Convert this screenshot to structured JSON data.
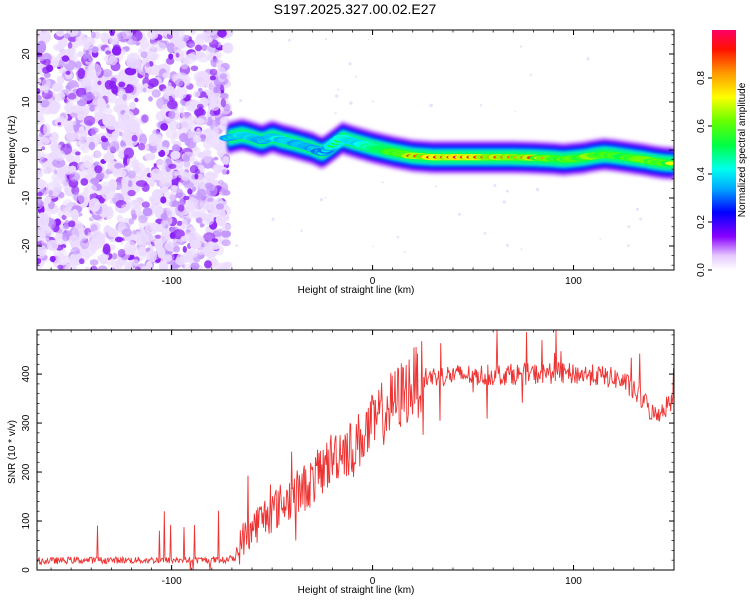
{
  "figure": {
    "title": "S197.2025.327.00.02.E27"
  },
  "chart_data": [
    {
      "type": "heatmap",
      "name": "spectrogram",
      "xlabel": "Height of straight line (km)",
      "ylabel": "Frequency (Hz)",
      "xlim": [
        -167,
        150
      ],
      "ylim": [
        -25,
        25
      ],
      "xticks": [
        -100,
        0,
        100
      ],
      "yticks": [
        -20,
        -10,
        0,
        10,
        20
      ],
      "noise_region_x": [
        -167,
        -72
      ],
      "signal_onset_x": -72,
      "ridge": {
        "x": [
          -72,
          -65,
          -60,
          -55,
          -50,
          -45,
          -40,
          -35,
          -30,
          -25,
          -20,
          -15,
          -10,
          -5,
          0,
          5,
          10,
          15,
          20,
          30,
          40,
          50,
          60,
          70,
          80,
          90,
          95,
          100,
          105,
          110,
          115,
          120,
          125,
          130,
          135,
          140,
          145,
          150
        ],
        "freq": [
          2.5,
          3.2,
          2.6,
          1.9,
          2.8,
          2.1,
          1.6,
          1.0,
          0.4,
          -0.6,
          0.9,
          2.5,
          1.8,
          1.2,
          0.6,
          0.1,
          -0.4,
          -0.8,
          -1.2,
          -1.5,
          -1.5,
          -1.5,
          -1.5,
          -1.5,
          -1.6,
          -1.8,
          -2.0,
          -1.8,
          -1.6,
          -1.2,
          -0.9,
          -1.1,
          -1.4,
          -1.7,
          -2.0,
          -2.4,
          -2.7,
          -2.8
        ],
        "peak_amplitude": [
          0.45,
          0.6,
          0.55,
          0.5,
          0.55,
          0.55,
          0.5,
          0.55,
          0.5,
          0.45,
          0.55,
          0.6,
          0.55,
          0.6,
          0.65,
          0.7,
          0.8,
          0.85,
          0.9,
          0.95,
          1.0,
          1.0,
          0.98,
          0.95,
          0.9,
          0.85,
          0.8,
          0.85,
          0.85,
          0.9,
          0.85,
          0.85,
          0.8,
          0.8,
          0.85,
          0.85,
          0.85,
          0.8
        ]
      },
      "colorbar": {
        "label": "Normalized spectral amplitude",
        "range": [
          0,
          1
        ],
        "ticks": [
          "0.0",
          "0.2",
          "0.4",
          "0.6",
          "0.8"
        ]
      }
    },
    {
      "type": "line",
      "name": "snr",
      "xlabel": "Height of straight line (km)",
      "ylabel": "SNR (10 * v/v)",
      "xlim": [
        -167,
        150
      ],
      "ylim": [
        0,
        490
      ],
      "xticks": [
        -100,
        0,
        100
      ],
      "yticks": [
        0,
        100,
        200,
        300,
        400
      ],
      "color": "#ee3333",
      "x": [
        -167,
        -150,
        -130,
        -110,
        -90,
        -75,
        -68,
        -65,
        -60,
        -55,
        -50,
        -45,
        -40,
        -35,
        -30,
        -25,
        -20,
        -15,
        -10,
        -5,
        0,
        5,
        10,
        15,
        20,
        25,
        30,
        40,
        50,
        60,
        70,
        80,
        90,
        100,
        110,
        120,
        125,
        130,
        135,
        140,
        145,
        150
      ],
      "y": [
        18,
        20,
        20,
        20,
        20,
        20,
        25,
        60,
        85,
        105,
        120,
        135,
        150,
        165,
        180,
        205,
        230,
        250,
        245,
        275,
        295,
        320,
        340,
        360,
        380,
        392,
        395,
        398,
        398,
        398,
        400,
        400,
        402,
        400,
        398,
        392,
        385,
        365,
        345,
        315,
        330,
        350
      ]
    }
  ]
}
